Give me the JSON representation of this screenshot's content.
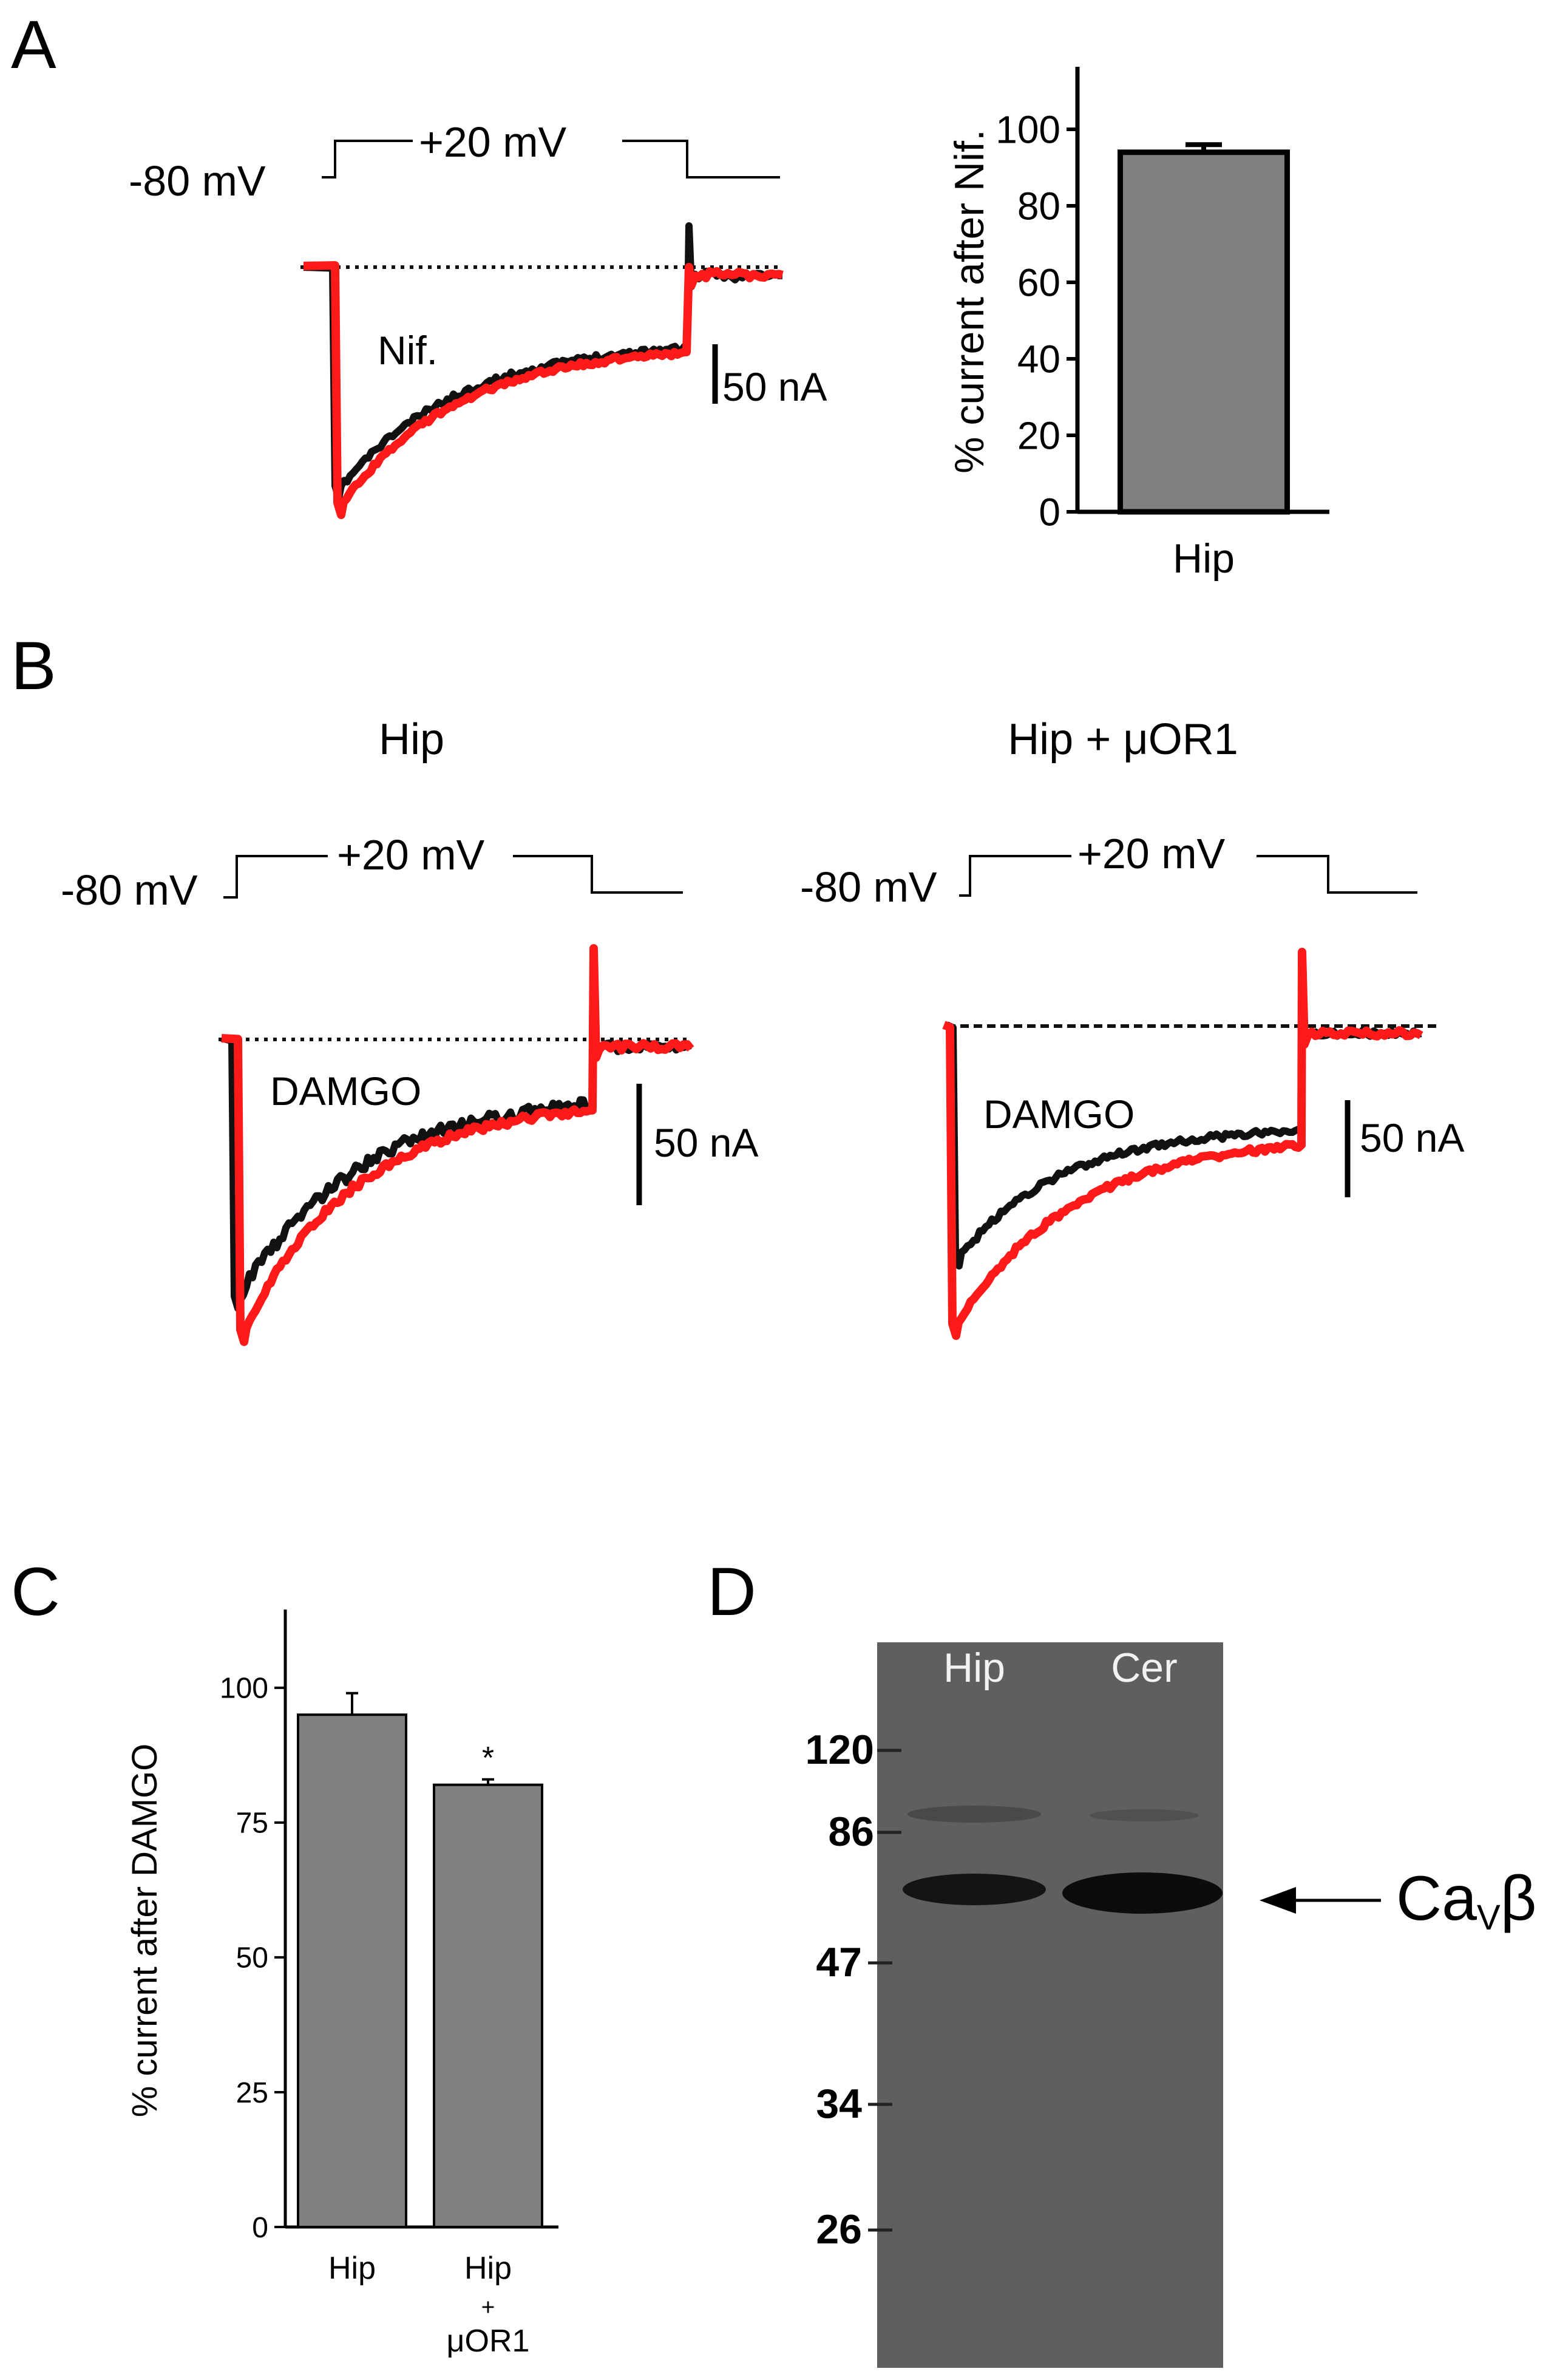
{
  "colors": {
    "control_trace": "#111111",
    "drug_trace": "#ff1a1a",
    "bar_fill": "#808080",
    "blot_background": "#5a5a5a",
    "blot_band": "#141414",
    "blot_text": "#f2f2f2"
  },
  "panel_a": {
    "letter": "A",
    "protocol": {
      "holding": "-80 mV",
      "step": "+20 mV"
    },
    "drug_label": "Nif.",
    "scale_bar": "50 nA"
  },
  "panel_b": {
    "letter": "B",
    "left": {
      "title": "Hip",
      "protocol": {
        "holding": "-80 mV",
        "step": "+20 mV"
      },
      "drug_label": "DAMGO",
      "scale_bar": "50 nA"
    },
    "right": {
      "title": "Hip + μOR1",
      "protocol": {
        "holding": "-80 mV",
        "step": "+20 mV"
      },
      "drug_label": "DAMGO",
      "scale_bar": "50 nA"
    }
  },
  "panel_c": {
    "letter": "C"
  },
  "panel_d": {
    "letter": "D",
    "lanes": [
      "Hip",
      "Cer"
    ],
    "markers": [
      "120",
      "86",
      "47",
      "34",
      "26"
    ],
    "band_label": {
      "main": "Ca",
      "sub": "V",
      "tail": "β"
    }
  },
  "chart_data": [
    {
      "panel": "A",
      "type": "bar",
      "categories": [
        "Hip"
      ],
      "values": [
        94
      ],
      "errors": [
        2
      ],
      "ylabel": "% current after Nif.",
      "ylim": [
        0,
        110
      ],
      "yticks": [
        "0",
        "20",
        "40",
        "60",
        "80",
        "100"
      ]
    },
    {
      "panel": "C",
      "type": "bar",
      "categories": [
        "Hip",
        "Hip + μOR1"
      ],
      "category_lines": [
        [
          "Hip"
        ],
        [
          "Hip",
          "+",
          "μOR1"
        ]
      ],
      "values": [
        95,
        82
      ],
      "errors": [
        4,
        1
      ],
      "significance": [
        "",
        "*"
      ],
      "ylabel": "% current after DAMGO",
      "ylim": [
        0,
        110
      ],
      "yticks": [
        "0",
        "25",
        "50",
        "75",
        "100"
      ]
    }
  ]
}
